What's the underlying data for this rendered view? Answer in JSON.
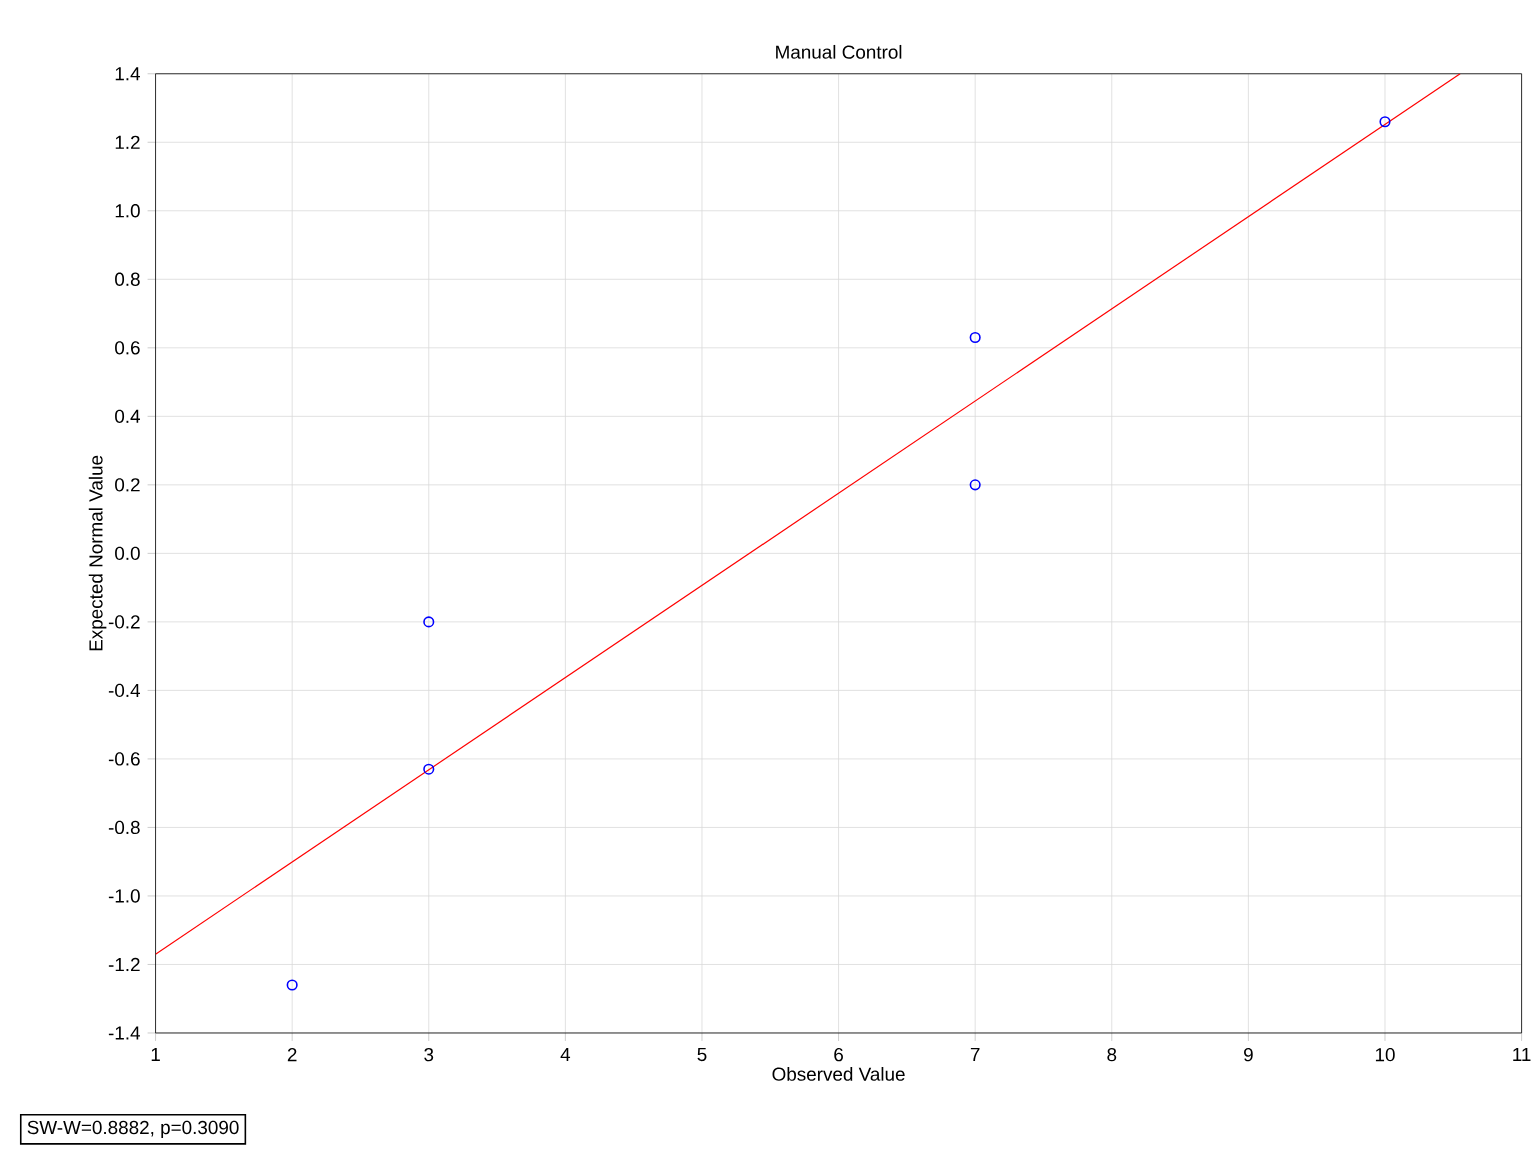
{
  "chart_data": {
    "type": "scatter",
    "title": "Manual Control",
    "xlabel": "Observed Value",
    "ylabel": "Expected Normal Value",
    "xlim": [
      1,
      11
    ],
    "xticks": [
      1,
      2,
      3,
      4,
      5,
      6,
      7,
      8,
      9,
      10,
      11
    ],
    "ylim": [
      -1.4,
      1.4
    ],
    "yticks": [
      -1.4,
      -1.2,
      {
        "value": -1.0,
        "label": "-1.0"
      },
      -0.8,
      -0.6,
      -0.4,
      -0.2,
      {
        "value": 0,
        "label": "0.0"
      },
      0.2,
      0.4,
      0.6,
      0.8,
      {
        "value": 1.0,
        "label": "1.0"
      },
      1.2,
      1.4
    ],
    "grid": true,
    "series": [
      {
        "marker": "circle",
        "color": "#0000ff",
        "x": [
          2,
          3,
          3,
          7,
          7,
          10
        ],
        "values": [
          -1.26,
          -0.63,
          -0.2,
          0.2,
          0.63,
          1.26
        ]
      },
      {
        "type": "line",
        "color": "#ff0000",
        "x": [
          1,
          10.55
        ],
        "values": [
          -1.17,
          1.4
        ]
      }
    ],
    "annotations": [
      "SW-W=0.8882, p=0.3090"
    ]
  }
}
